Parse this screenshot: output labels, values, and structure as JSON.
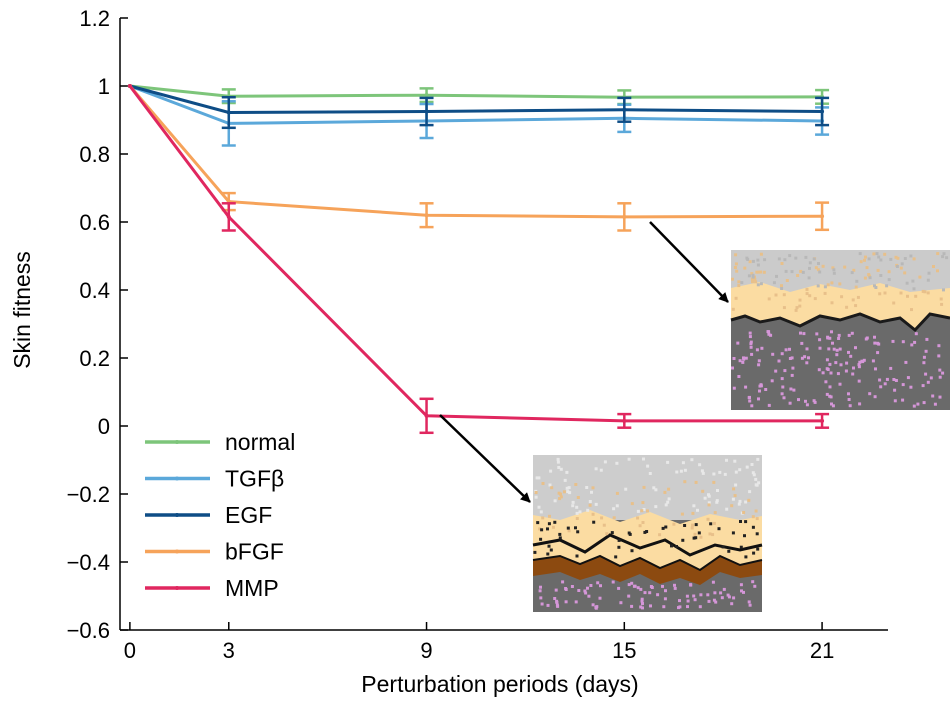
{
  "chart_data": {
    "type": "line",
    "xlabel": "Perturbation periods (days)",
    "ylabel": "Skin fitness",
    "x": [
      0,
      3,
      9,
      15,
      21
    ],
    "xticks": [
      "0",
      "3",
      "9",
      "15",
      "21"
    ],
    "yticks": [
      "−0.6",
      "−0.4",
      "−0.2",
      "0",
      "0.2",
      "0.4",
      "0.6",
      "0.8",
      "1",
      "1.2"
    ],
    "ylim": [
      -0.6,
      1.2
    ],
    "xlim": [
      -0.3,
      23
    ],
    "legend_position": "bottom-left",
    "series": [
      {
        "name": "normal",
        "color": "#7dc57a",
        "values": [
          1.0,
          0.97,
          0.973,
          0.967,
          0.968
        ],
        "errors": [
          0,
          0.02,
          0.02,
          0.02,
          0.02
        ]
      },
      {
        "name": "TGFβ",
        "color": "#5ba8da",
        "values": [
          1.0,
          0.89,
          0.897,
          0.905,
          0.897
        ],
        "errors": [
          0,
          0.065,
          0.05,
          0.04,
          0.04
        ]
      },
      {
        "name": "EGF",
        "color": "#0e4d86",
        "values": [
          1.0,
          0.922,
          0.925,
          0.93,
          0.925
        ],
        "errors": [
          0,
          0.045,
          0.04,
          0.035,
          0.04
        ]
      },
      {
        "name": "bFGF",
        "color": "#f6a35a",
        "values": [
          1.0,
          0.66,
          0.62,
          0.615,
          0.617
        ],
        "errors": [
          0,
          0.025,
          0.035,
          0.04,
          0.04
        ]
      },
      {
        "name": "MMP",
        "color": "#e0275f",
        "values": [
          1.0,
          0.615,
          0.03,
          0.015,
          0.015
        ],
        "errors": [
          0,
          0.04,
          0.05,
          0.02,
          0.02
        ]
      }
    ],
    "insets": [
      {
        "name": "bfgf-day15-snapshot",
        "attached_to": "bFGF",
        "x": 15
      },
      {
        "name": "mmp-day9-snapshot",
        "attached_to": "MMP",
        "x": 9
      }
    ]
  }
}
